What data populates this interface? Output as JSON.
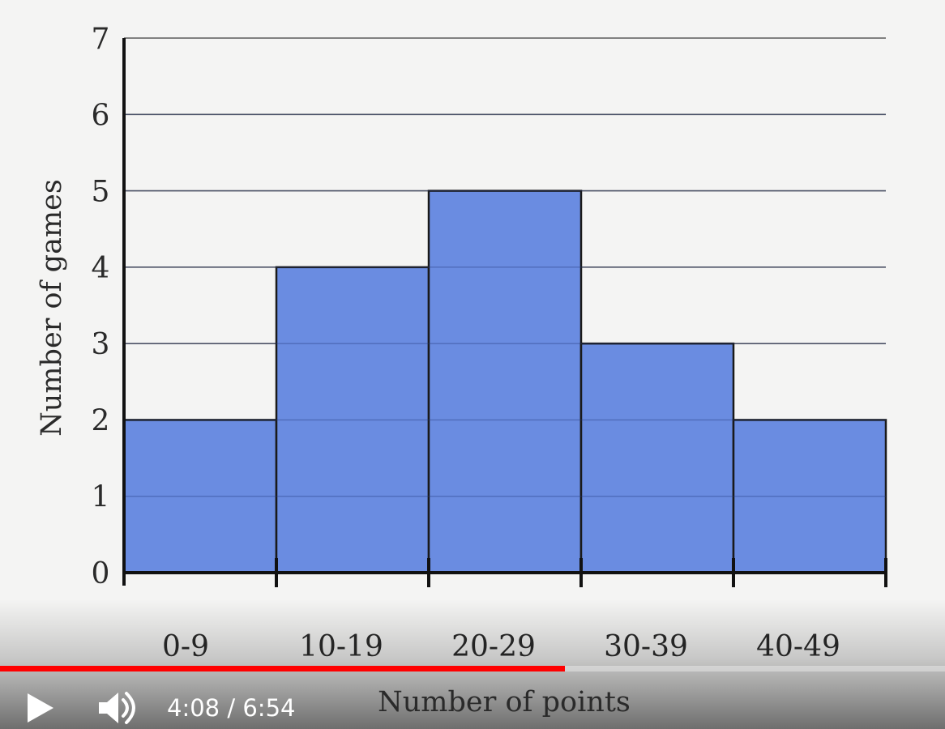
{
  "chart_data": {
    "type": "bar",
    "categories": [
      "0-9",
      "10-19",
      "20-29",
      "30-39",
      "40-49"
    ],
    "values": [
      2,
      4,
      5,
      3,
      2
    ],
    "title": "",
    "xlabel": "Number of points",
    "ylabel": "Number of games",
    "ylim": [
      0,
      7
    ],
    "yticks": [
      "0",
      "1",
      "2",
      "3",
      "4",
      "5",
      "6",
      "7"
    ],
    "grid": true,
    "bar_color": "#6487e0",
    "bar_edge_color": "#1a1a1a",
    "gridline_color": "#5a5a5a"
  },
  "player": {
    "play_icon": "play-icon",
    "volume_icon": "volume-icon",
    "current_time": "4:08",
    "separator": " / ",
    "duration": "6:54",
    "progress_fraction": 0.598,
    "progress_color": "#ff0000"
  }
}
